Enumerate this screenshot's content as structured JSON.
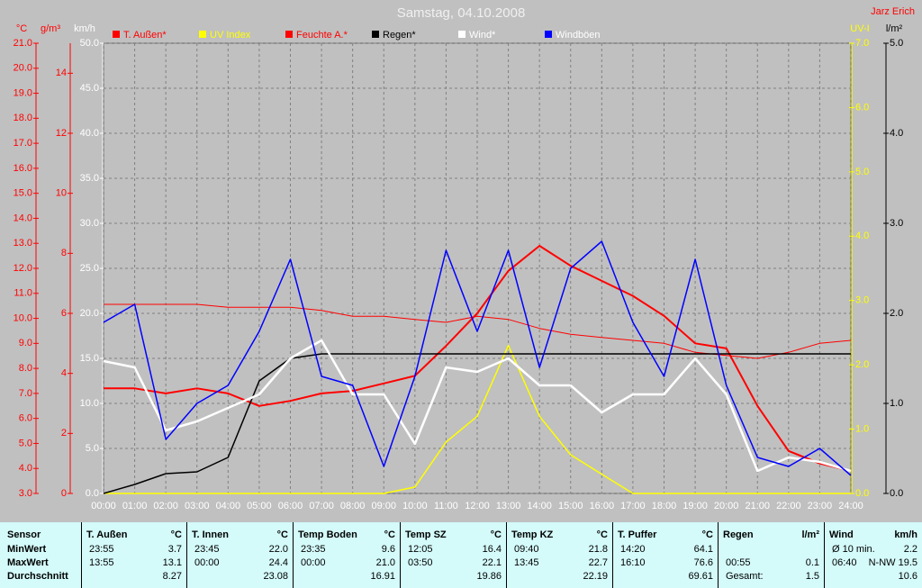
{
  "chart_data": {
    "type": "line",
    "title": "Samstag, 04.10.2008",
    "author": "Jarz Erich",
    "x": [
      0,
      1,
      2,
      3,
      4,
      5,
      6,
      7,
      8,
      9,
      10,
      11,
      12,
      13,
      14,
      15,
      16,
      17,
      18,
      19,
      20,
      21,
      22,
      23,
      24
    ],
    "xlim": [
      0,
      24
    ],
    "xticks": [
      {
        "value": 0,
        "label": "00:00"
      },
      {
        "value": 1,
        "label": "01:00"
      },
      {
        "value": 2,
        "label": "02:00"
      },
      {
        "value": 3,
        "label": "03:00"
      },
      {
        "value": 4,
        "label": "04:00"
      },
      {
        "value": 5,
        "label": "05:00"
      },
      {
        "value": 6,
        "label": "06:00"
      },
      {
        "value": 7,
        "label": "07:00"
      },
      {
        "value": 8,
        "label": "08:00"
      },
      {
        "value": 9,
        "label": "09:00"
      },
      {
        "value": 10,
        "label": "10:00"
      },
      {
        "value": 11,
        "label": "11:00"
      },
      {
        "value": 12,
        "label": "12:00"
      },
      {
        "value": 13,
        "label": "13:00"
      },
      {
        "value": 14,
        "label": "14:00"
      },
      {
        "value": 15,
        "label": "15:00"
      },
      {
        "value": 16,
        "label": "16:00"
      },
      {
        "value": 17,
        "label": "17:00"
      },
      {
        "value": 18,
        "label": "18:00"
      },
      {
        "value": 19,
        "label": "19:00"
      },
      {
        "value": 20,
        "label": "20:00"
      },
      {
        "value": 21,
        "label": "21:00"
      },
      {
        "value": 22,
        "label": "22:00"
      },
      {
        "value": 23,
        "label": "23:00"
      },
      {
        "value": 24,
        "label": "24:00"
      }
    ],
    "grid": true,
    "axes": [
      {
        "label": "°C",
        "color": "#ff0000",
        "lim": [
          3,
          21
        ],
        "ticks": [
          {
            "value": 3,
            "label": "3.0"
          },
          {
            "value": 4,
            "label": "4.0"
          },
          {
            "value": 5,
            "label": "5.0"
          },
          {
            "value": 6,
            "label": "6.0"
          },
          {
            "value": 7,
            "label": "7.0"
          },
          {
            "value": 8,
            "label": "8.0"
          },
          {
            "value": 9,
            "label": "9.0"
          },
          {
            "value": 10,
            "label": "10.0"
          },
          {
            "value": 11,
            "label": "11.0"
          },
          {
            "value": 12,
            "label": "12.0"
          },
          {
            "value": 13,
            "label": "13.0"
          },
          {
            "value": 14,
            "label": "14.0"
          },
          {
            "value": 15,
            "label": "15.0"
          },
          {
            "value": 16,
            "label": "16.0"
          },
          {
            "value": 17,
            "label": "17.0"
          },
          {
            "value": 18,
            "label": "18.0"
          },
          {
            "value": 19,
            "label": "19.0"
          },
          {
            "value": 20,
            "label": "20.0"
          },
          {
            "value": 21,
            "label": "21.0"
          }
        ]
      },
      {
        "label": "g/m³",
        "color": "#ff0000",
        "lim": [
          0,
          15
        ],
        "ticks": [
          0,
          2,
          4,
          6,
          8,
          10,
          12,
          14
        ]
      },
      {
        "label": "km/h",
        "color": "#ffffff",
        "lim": [
          0,
          50
        ],
        "ticks": [
          {
            "value": 0,
            "label": "0.0"
          },
          {
            "value": 5,
            "label": "5.0"
          },
          {
            "value": 10,
            "label": "10.0"
          },
          {
            "value": 15,
            "label": "15.0"
          },
          {
            "value": 20,
            "label": "20.0"
          },
          {
            "value": 25,
            "label": "25.0"
          },
          {
            "value": 30,
            "label": "30.0"
          },
          {
            "value": 35,
            "label": "35.0"
          },
          {
            "value": 40,
            "label": "40.0"
          },
          {
            "value": 45,
            "label": "45.0"
          },
          {
            "value": 50,
            "label": "50.0"
          }
        ]
      },
      {
        "label": "UV-I",
        "color": "#ffff00",
        "lim": [
          0,
          7
        ],
        "ticks": [
          {
            "value": 0,
            "label": "0.0"
          },
          {
            "value": 1,
            "label": "1.0"
          },
          {
            "value": 2,
            "label": "2.0"
          },
          {
            "value": 3,
            "label": "3.0"
          },
          {
            "value": 4,
            "label": "4.0"
          },
          {
            "value": 5,
            "label": "5.0"
          },
          {
            "value": 6,
            "label": "6.0"
          },
          {
            "value": 7,
            "label": "7.0"
          }
        ]
      },
      {
        "label": "l/m²",
        "color": "#000000",
        "lim": [
          0,
          5
        ],
        "ticks": [
          {
            "value": 0,
            "label": "0.0"
          },
          {
            "value": 1,
            "label": "1.0"
          },
          {
            "value": 2,
            "label": "2.0"
          },
          {
            "value": 3,
            "label": "3.0"
          },
          {
            "value": 4,
            "label": "4.0"
          },
          {
            "value": 5,
            "label": "5.0"
          }
        ]
      }
    ],
    "grid_axis": 2,
    "series": [
      {
        "name": "T. Außen*",
        "color": "#ff0000",
        "label_color": "#ff0000",
        "width": 2,
        "axis": 0,
        "values": [
          7.2,
          7.2,
          7.0,
          7.2,
          7.0,
          6.5,
          6.7,
          7.0,
          7.1,
          7.4,
          7.7,
          8.9,
          10.2,
          11.9,
          12.9,
          12.1,
          11.5,
          10.9,
          10.1,
          9.0,
          8.8,
          6.5,
          4.7,
          4.2,
          3.9
        ]
      },
      {
        "name": "UV Index",
        "color": "#ffff00",
        "label_color": "#ffff00",
        "width": 1.5,
        "axis": 3,
        "values": [
          0,
          0,
          0,
          0,
          0,
          0,
          0,
          0,
          0,
          0,
          0.1,
          0.8,
          1.2,
          2.3,
          1.2,
          0.6,
          0.3,
          0,
          0,
          0,
          0,
          0,
          0,
          0,
          0
        ]
      },
      {
        "name": "Feuchte A.*",
        "color": "#ff0000",
        "label_color": "#ff0000",
        "width": 1,
        "axis": 1,
        "values": [
          6.3,
          6.3,
          6.3,
          6.3,
          6.2,
          6.2,
          6.2,
          6.1,
          5.9,
          5.9,
          5.8,
          5.7,
          5.9,
          5.8,
          5.5,
          5.3,
          5.2,
          5.1,
          5.0,
          4.7,
          4.6,
          4.5,
          4.7,
          5.0,
          5.1
        ]
      },
      {
        "name": "Regen*",
        "color": "#000000",
        "label_color": "#000000",
        "width": 1.5,
        "axis": 4,
        "values": [
          0,
          0.1,
          0.22,
          0.24,
          0.4,
          1.25,
          1.5,
          1.55,
          1.55,
          1.55,
          1.55,
          1.55,
          1.55,
          1.55,
          1.55,
          1.55,
          1.55,
          1.55,
          1.55,
          1.55,
          1.55,
          1.55,
          1.55,
          1.55,
          1.55
        ]
      },
      {
        "name": "Wind*",
        "color": "#ffffff",
        "label_color": "#ffffff",
        "width": 2.5,
        "axis": 2,
        "values": [
          14.7,
          14,
          7,
          8,
          9.5,
          11,
          15,
          17,
          11,
          11,
          5.5,
          14,
          13.5,
          15,
          12,
          12,
          9,
          11,
          11,
          15,
          11,
          2.5,
          4,
          3.5,
          2.5
        ]
      },
      {
        "name": "Windböen",
        "color": "#0000ff",
        "label_color": "#ffffff",
        "width": 1.5,
        "axis": 2,
        "values": [
          19,
          21,
          6,
          10,
          12,
          18,
          26,
          13,
          12,
          3,
          13,
          27,
          18,
          27,
          14,
          25,
          28,
          19,
          13,
          26,
          12,
          4,
          3,
          5,
          2
        ]
      }
    ]
  },
  "table": {
    "corner": "Sensor",
    "row_labels": [
      "MinWert",
      "MaxWert",
      "Durchschnitt"
    ],
    "columns": [
      {
        "name": "T. Außen",
        "unit": "°C",
        "rows": [
          [
            "23:55",
            "3.7"
          ],
          [
            "13:55",
            "13.1"
          ],
          [
            null,
            "8.27"
          ]
        ]
      },
      {
        "name": "T. Innen",
        "unit": "°C",
        "rows": [
          [
            "23:45",
            "22.0"
          ],
          [
            "00:00",
            "24.4"
          ],
          [
            null,
            "23.08"
          ]
        ]
      },
      {
        "name": "Temp Boden",
        "unit": "°C",
        "rows": [
          [
            "23:35",
            "9.6"
          ],
          [
            "00:00",
            "21.0"
          ],
          [
            null,
            "16.91"
          ]
        ]
      },
      {
        "name": "Temp SZ",
        "unit": "°C",
        "rows": [
          [
            "12:05",
            "16.4"
          ],
          [
            "03:50",
            "22.1"
          ],
          [
            null,
            "19.86"
          ]
        ]
      },
      {
        "name": "Temp KZ",
        "unit": "°C",
        "rows": [
          [
            "09:40",
            "21.8"
          ],
          [
            "13:45",
            "22.7"
          ],
          [
            null,
            "22.19"
          ]
        ]
      },
      {
        "name": "T. Puffer",
        "unit": "°C",
        "rows": [
          [
            "14:20",
            "64.1"
          ],
          [
            "16:10",
            "76.6"
          ],
          [
            null,
            "69.61"
          ]
        ]
      },
      {
        "name": "Regen",
        "unit": "l/m²",
        "rows": [
          null,
          [
            "00:55",
            "0.1"
          ],
          [
            "Gesamt:",
            "1.5"
          ]
        ]
      },
      {
        "name": "Wind",
        "unit": "km/h",
        "rows": [
          [
            "Ø 10 min.",
            "2.2"
          ],
          [
            "06:40",
            "N-NW 19.5"
          ],
          [
            null,
            "10.6"
          ]
        ]
      }
    ]
  }
}
